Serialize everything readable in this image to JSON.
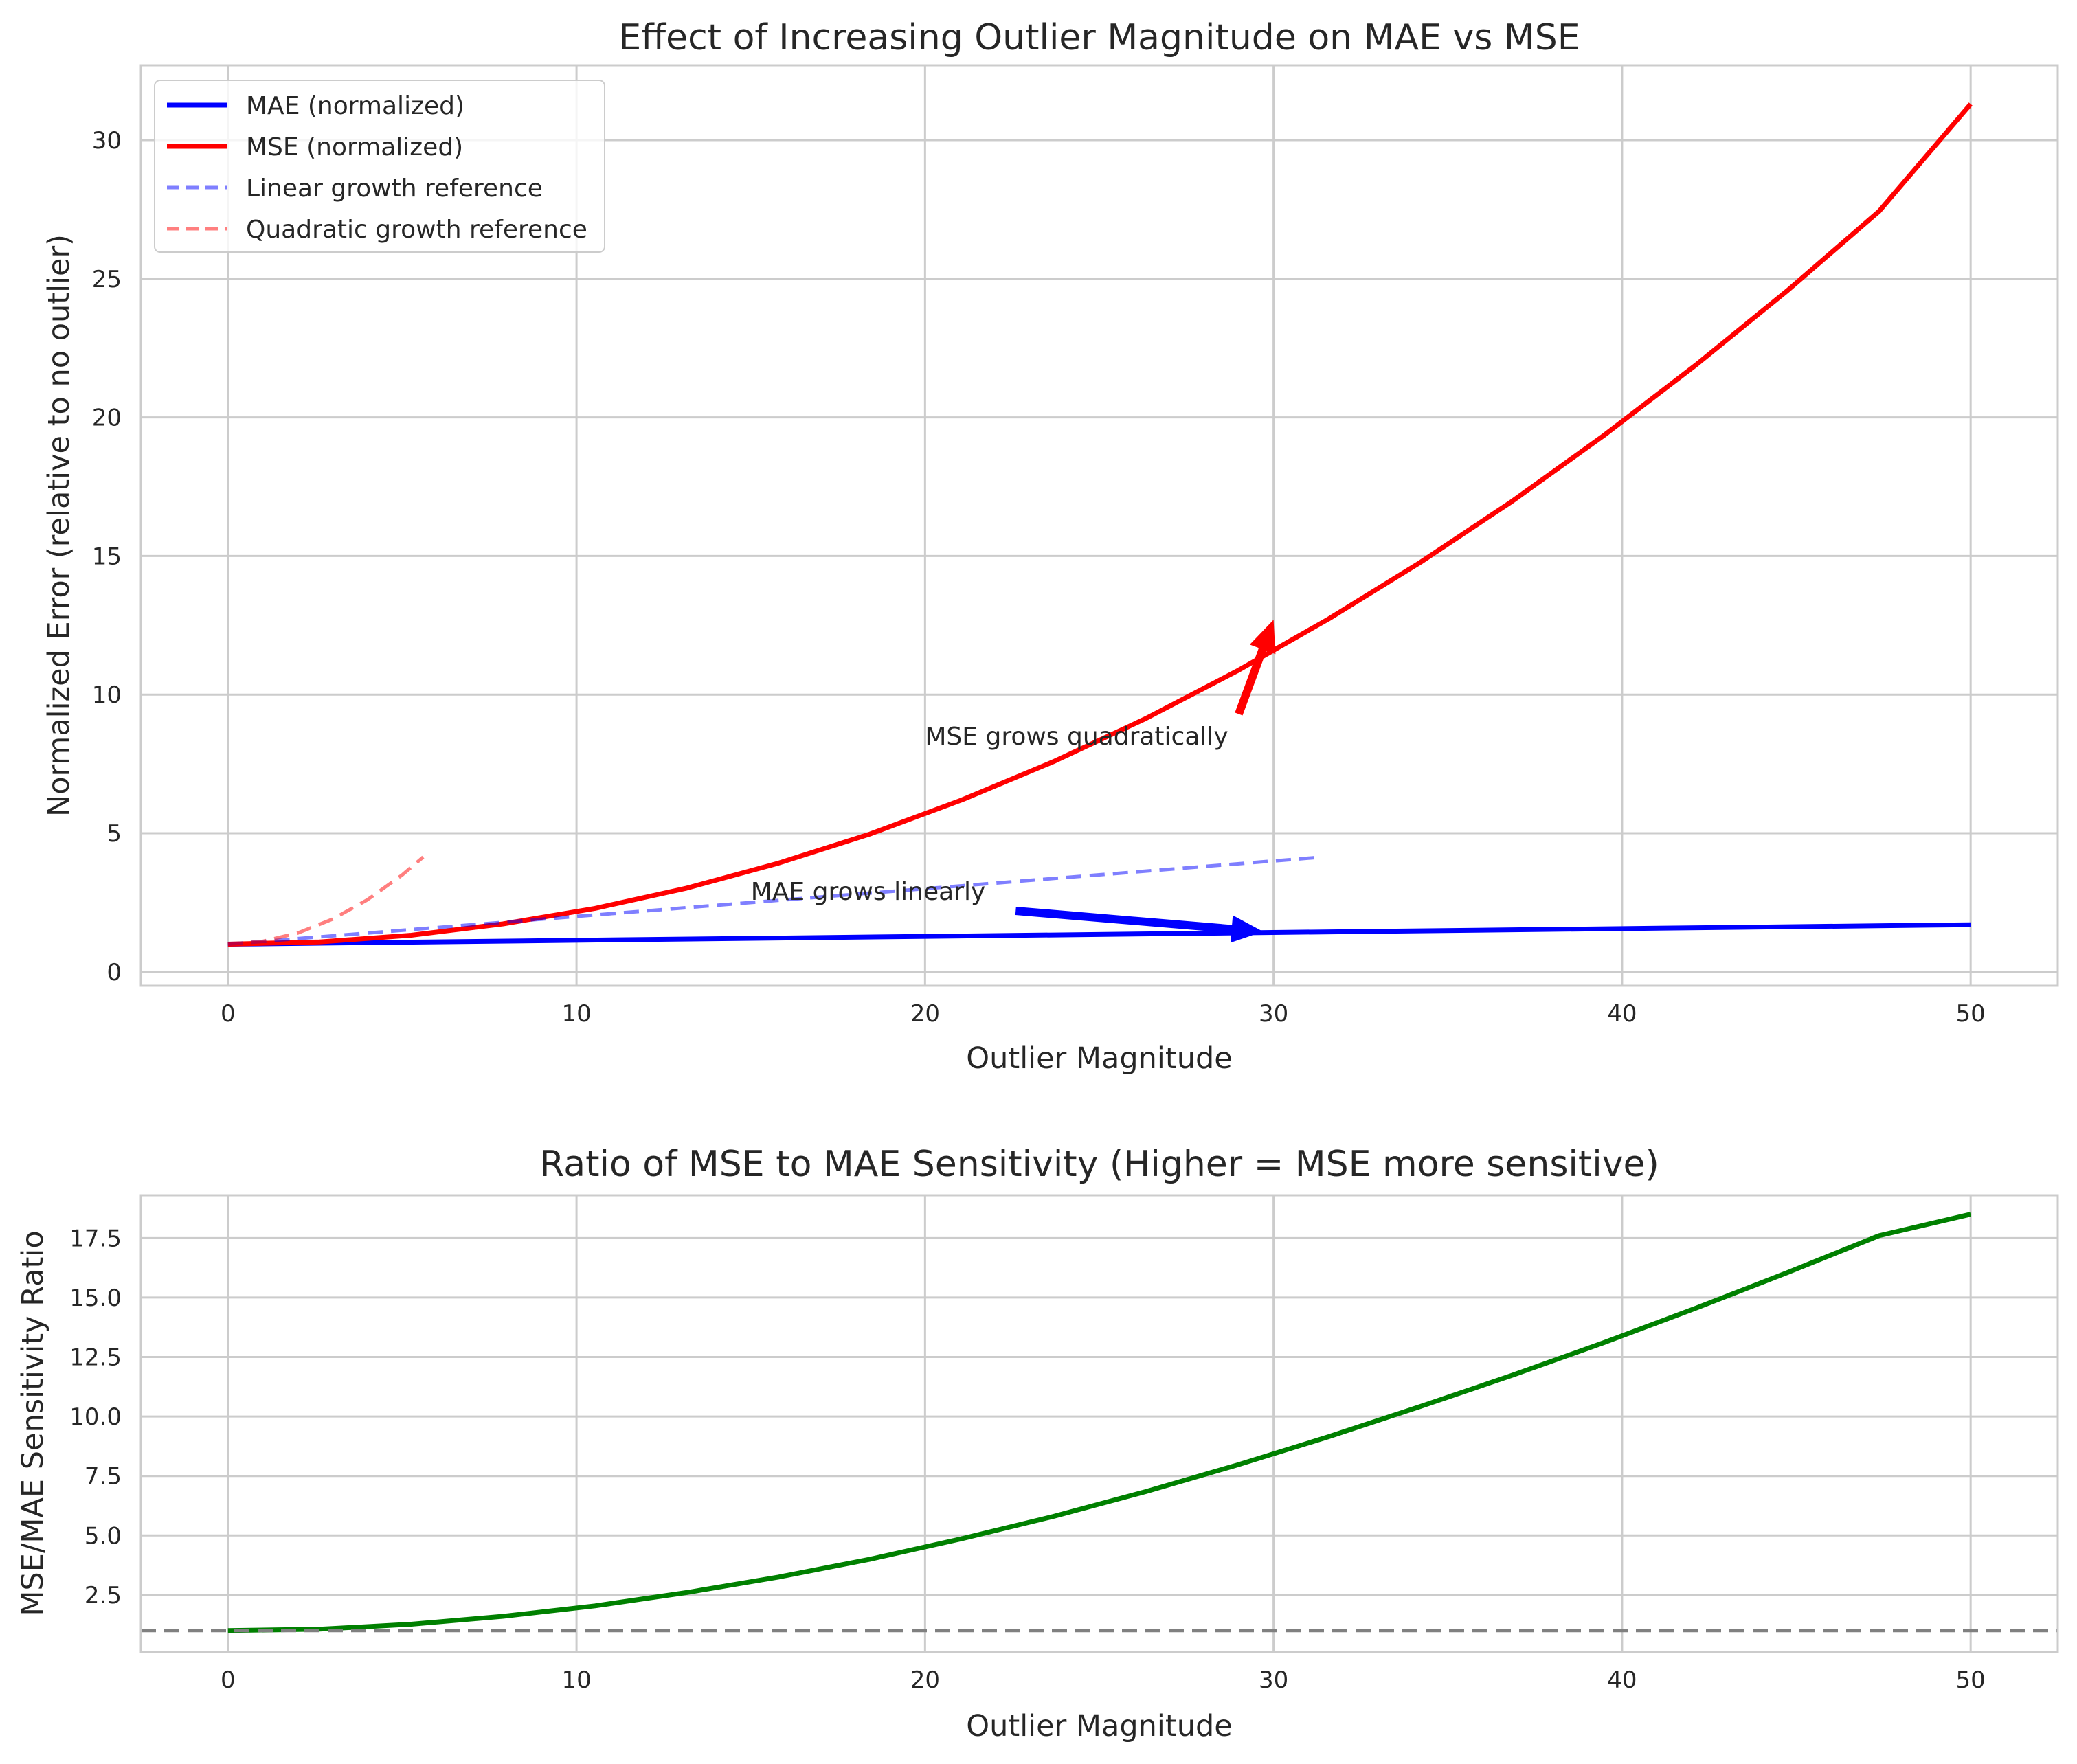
{
  "colors": {
    "mae": "#0000ff",
    "mse": "#ff0000",
    "ratio": "#008000",
    "baseline": "#808080",
    "grid": "#cccccc",
    "frame": "#cccccc",
    "text": "#262626"
  },
  "chart_data": [
    {
      "type": "line",
      "title": "Effect of Increasing Outlier Magnitude on MAE vs MSE",
      "xlabel": "Outlier Magnitude",
      "ylabel": "Normalized Error (relative to no outlier)",
      "xlim": [
        -2.5,
        52.5
      ],
      "ylim": [
        -0.5,
        32.7
      ],
      "xticks": [
        0,
        10,
        20,
        30,
        40,
        50
      ],
      "yticks": [
        0,
        5,
        10,
        15,
        20,
        25,
        30
      ],
      "grid": true,
      "legend_position": "upper-left",
      "legend": [
        {
          "label": "MAE (normalized)",
          "color": "#0000ff",
          "style": "solid"
        },
        {
          "label": "MSE (normalized)",
          "color": "#ff0000",
          "style": "solid"
        },
        {
          "label": "Linear growth reference",
          "color": "#0000ff",
          "style": "dashed",
          "opacity": 0.5
        },
        {
          "label": "Quadratic growth reference",
          "color": "#ff0000",
          "style": "dashed",
          "opacity": 0.5
        }
      ],
      "series": [
        {
          "name": "MAE (normalized)",
          "color": "#0000ff",
          "style": "solid",
          "width": 7,
          "x": [
            0,
            50
          ],
          "y": [
            1.0,
            1.7
          ]
        },
        {
          "name": "MSE (normalized)",
          "color": "#ff0000",
          "style": "solid",
          "width": 7,
          "x": [
            0,
            2.63,
            5.26,
            7.89,
            10.53,
            13.16,
            15.79,
            18.42,
            21.05,
            23.68,
            26.32,
            28.95,
            31.58,
            34.21,
            36.84,
            39.47,
            42.11,
            44.74,
            47.37,
            50
          ],
          "y": [
            1.0,
            1.08,
            1.32,
            1.73,
            2.29,
            3.02,
            3.92,
            4.97,
            6.2,
            7.58,
            9.13,
            10.85,
            12.73,
            14.77,
            16.97,
            19.34,
            21.88,
            24.57,
            27.43,
            31.3
          ]
        },
        {
          "name": "Linear growth reference",
          "color": "#0000ff",
          "style": "dashed",
          "opacity": 0.5,
          "width": 5,
          "x": [
            0,
            31.2
          ],
          "y": [
            1.0,
            4.12
          ]
        },
        {
          "name": "Quadratic growth reference",
          "color": "#ff0000",
          "style": "dashed",
          "opacity": 0.5,
          "width": 5,
          "x": [
            0,
            1,
            2,
            3,
            4,
            5,
            5.6
          ],
          "y": [
            1.0,
            1.1,
            1.4,
            1.9,
            2.6,
            3.5,
            4.14
          ]
        }
      ],
      "annotations": [
        {
          "text": "MSE grows quadratically",
          "text_x": 20,
          "text_y": 8.2,
          "arrow_from": [
            29.0,
            9.3
          ],
          "arrow_to": [
            30.0,
            12.7
          ],
          "color": "#ff0000"
        },
        {
          "text": "MAE grows linearly",
          "text_x": 15,
          "text_y": 2.6,
          "arrow_from": [
            22.6,
            2.2
          ],
          "arrow_to": [
            29.7,
            1.45
          ],
          "color": "#0000ff"
        }
      ]
    },
    {
      "type": "line",
      "title": "Ratio of MSE to MAE Sensitivity (Higher = MSE more sensitive)",
      "xlabel": "Outlier Magnitude",
      "ylabel": "MSE/MAE Sensitivity Ratio",
      "xlim": [
        -2.5,
        52.5
      ],
      "ylim": [
        0.1,
        19.3
      ],
      "xticks": [
        0,
        10,
        20,
        30,
        40,
        50
      ],
      "yticks": [
        2.5,
        5.0,
        7.5,
        10.0,
        12.5,
        15.0,
        17.5
      ],
      "ytick_labels": [
        "2.5",
        "5.0",
        "7.5",
        "10.0",
        "12.5",
        "15.0",
        "17.5"
      ],
      "grid": true,
      "series": [
        {
          "color": "#008000",
          "style": "solid",
          "width": 7,
          "x": [
            0,
            2.63,
            5.26,
            7.89,
            10.53,
            13.16,
            15.79,
            18.42,
            21.05,
            23.68,
            26.32,
            28.95,
            31.58,
            34.21,
            36.84,
            39.47,
            42.11,
            44.74,
            47.37,
            50
          ],
          "y": [
            1.0,
            1.06,
            1.27,
            1.6,
            2.04,
            2.6,
            3.25,
            4.0,
            4.86,
            5.8,
            6.84,
            7.96,
            9.15,
            10.42,
            11.73,
            13.1,
            14.55,
            16.05,
            17.6,
            18.5
          ]
        },
        {
          "color": "#808080",
          "style": "dashed",
          "width": 5,
          "x": [
            -2.5,
            52.5
          ],
          "y": [
            1.0,
            1.0
          ]
        }
      ]
    }
  ]
}
